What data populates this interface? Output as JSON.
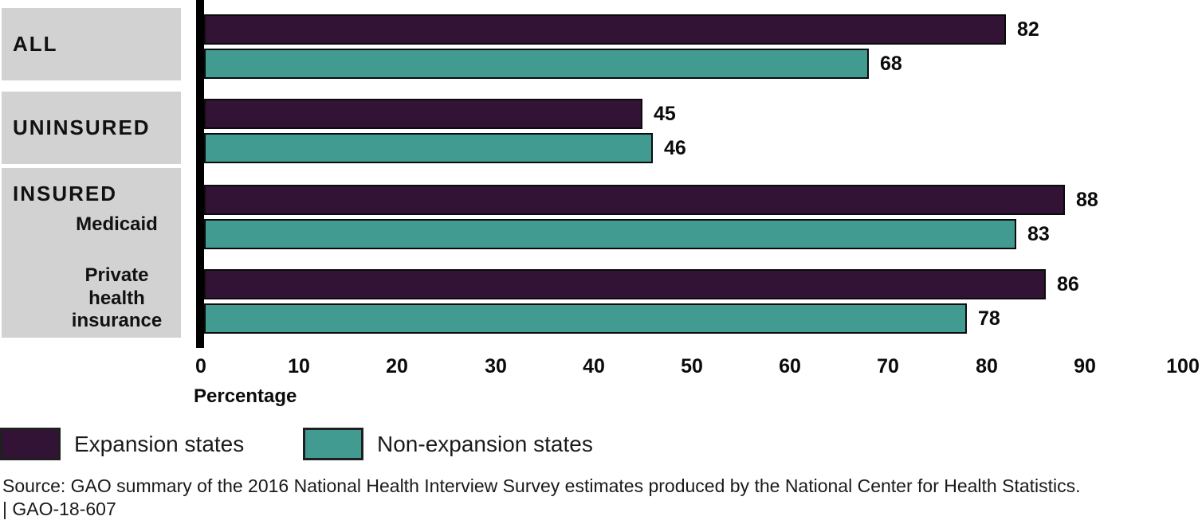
{
  "chart_data": {
    "type": "bar",
    "orientation": "horizontal",
    "title": "",
    "categories": [
      "ALL",
      "UNINSURED",
      "Medicaid",
      "Private health insurance"
    ],
    "group_headers": [
      "ALL",
      "UNINSURED",
      "INSURED",
      "INSURED"
    ],
    "series": [
      {
        "name": "Expansion states",
        "color": "#321335",
        "values": [
          82,
          45,
          88,
          86
        ]
      },
      {
        "name": "Non-expansion states",
        "color": "#419b91",
        "values": [
          68,
          46,
          83,
          78
        ]
      }
    ],
    "xlabel": "Percentage",
    "xlim": [
      0,
      100
    ],
    "xticks": [
      0,
      10,
      20,
      30,
      40,
      50,
      60,
      70,
      80,
      90,
      100
    ],
    "grid": "off",
    "legend_position": "bottom-left",
    "bar_border_color": "#0b0b0b",
    "category_box_color": "#d2d2d2",
    "axis_line_color": "#000000"
  },
  "category_labels": {
    "all": "ALL",
    "uninsured": "UNINSURED",
    "insured": "INSURED",
    "medicaid": "Medicaid",
    "private": "Private\nhealth\ninsurance"
  },
  "source": {
    "line1": "Source: GAO summary of the 2016 National Health Interview Survey estimates produced by the National Center for Health Statistics.",
    "line2": "|  GAO-18-607"
  }
}
